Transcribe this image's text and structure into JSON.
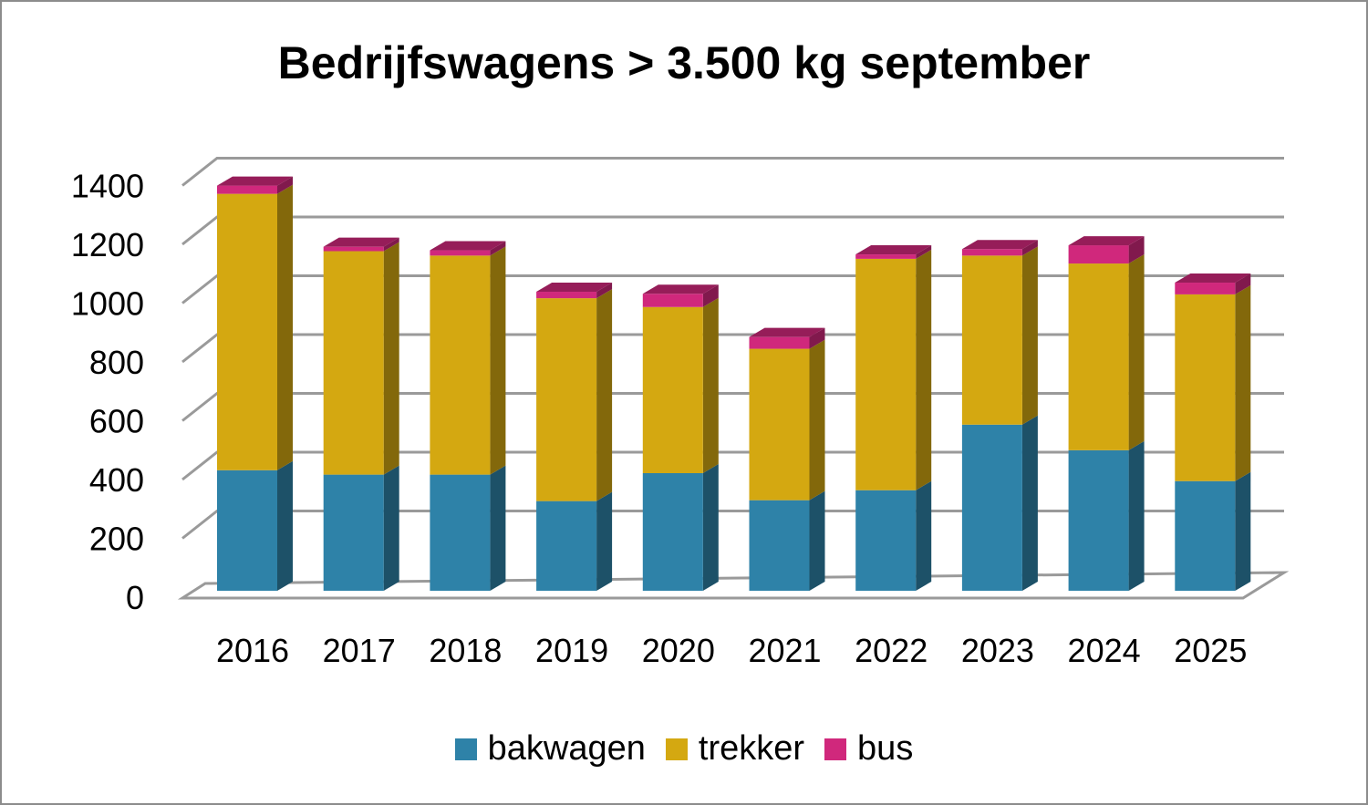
{
  "chart_data": {
    "type": "bar",
    "stacked": true,
    "three_d": true,
    "title": "Bedrijfswagens > 3.500 kg september",
    "xlabel": "",
    "ylabel": "",
    "ylim": [
      0,
      1400
    ],
    "y_ticks": [
      "0",
      "200",
      "400",
      "600",
      "800",
      "1000",
      "1200",
      "1400"
    ],
    "categories": [
      "2016",
      "2017",
      "2018",
      "2019",
      "2020",
      "2021",
      "2022",
      "2023",
      "2024",
      "2025"
    ],
    "series": [
      {
        "name": "bakwagen",
        "color": "#2e82a8",
        "values": [
          410,
          395,
          395,
          305,
          400,
          308,
          342,
          565,
          478,
          373
        ]
      },
      {
        "name": "trekker",
        "color": "#d4a811",
        "values": [
          940,
          760,
          745,
          690,
          565,
          515,
          787,
          575,
          635,
          635
        ]
      },
      {
        "name": "bus",
        "color": "#d0287c",
        "values": [
          28,
          15,
          18,
          22,
          45,
          40,
          15,
          22,
          62,
          40
        ]
      }
    ],
    "grid": true,
    "legend_position": "bottom"
  }
}
